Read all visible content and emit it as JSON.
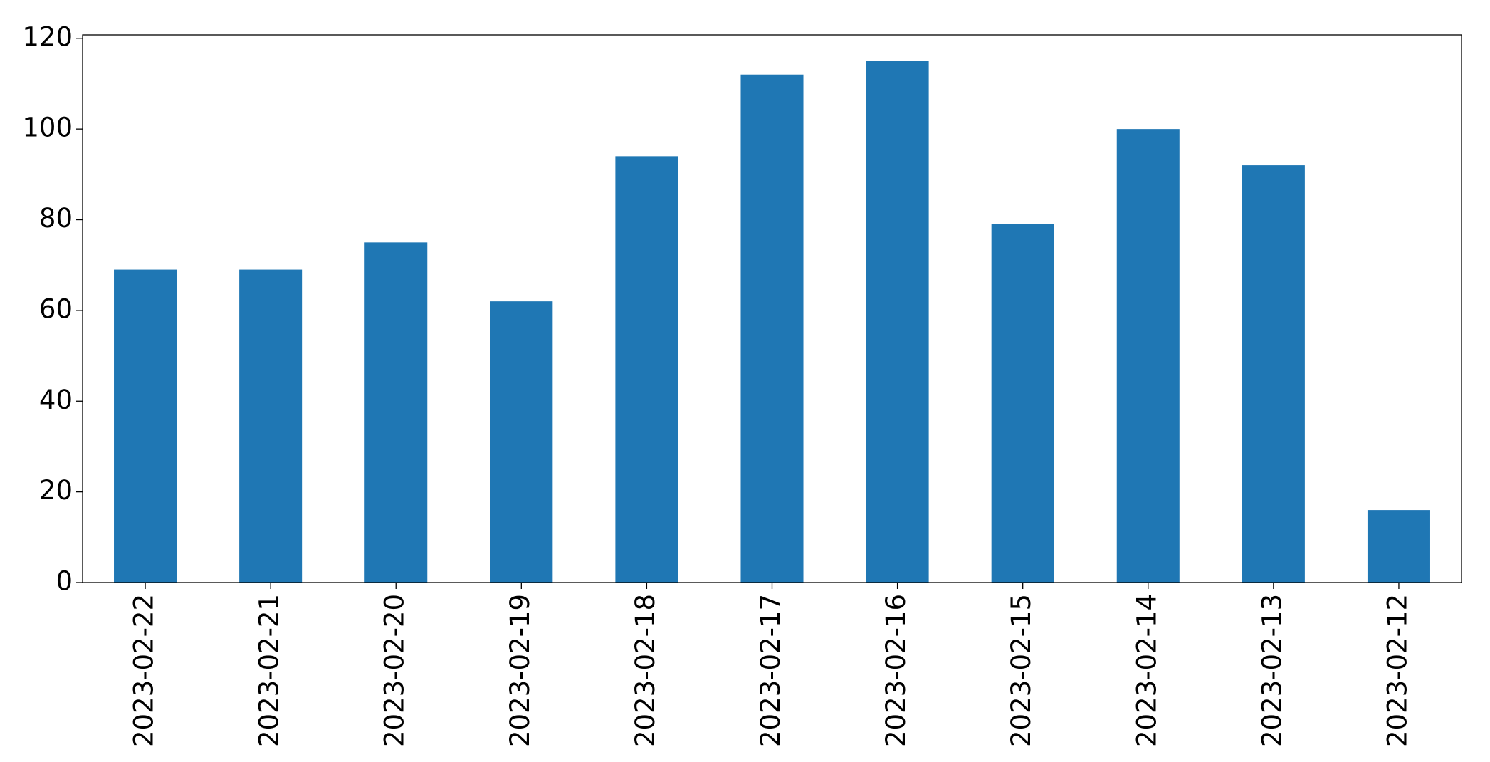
{
  "chart_data": {
    "type": "bar",
    "categories": [
      "2023-02-22",
      "2023-02-21",
      "2023-02-20",
      "2023-02-19",
      "2023-02-18",
      "2023-02-17",
      "2023-02-16",
      "2023-02-15",
      "2023-02-14",
      "2023-02-13",
      "2023-02-12"
    ],
    "values": [
      69,
      69,
      75,
      62,
      94,
      112,
      115,
      79,
      100,
      92,
      16
    ],
    "color": "#1f77b4",
    "ylim": [
      0,
      120.75
    ],
    "yticks": [
      0,
      20,
      40,
      60,
      80,
      100,
      120
    ],
    "grid": false
  }
}
